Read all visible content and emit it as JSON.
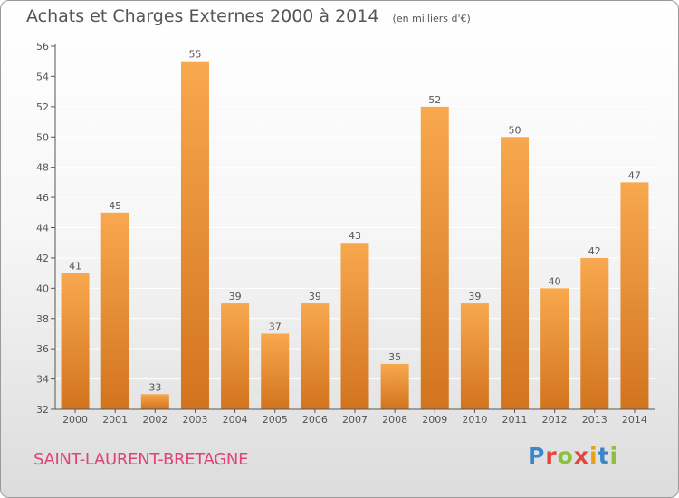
{
  "header": {
    "title": "Achats et Charges Externes 2000 à 2014",
    "subtitle": "(en milliers d'€)"
  },
  "footer": {
    "place": "SAINT-LAURENT-BRETAGNE",
    "logo_text": "Proxiti",
    "logo_colors": [
      "#3a86c8",
      "#e2463c",
      "#8bbf3c",
      "#e2463c",
      "#e8a21a",
      "#3a86c8",
      "#8bbf3c"
    ]
  },
  "colors": {
    "bar_light": "#f8a84e",
    "bar_dark": "#d2741e",
    "axis": "#555555",
    "grid": "#ffffff",
    "title": "#555555",
    "place": "#e0427a"
  },
  "chart_data": {
    "type": "bar",
    "title": "Achats et Charges Externes 2000 à 2014",
    "subtitle": "(en milliers d'€)",
    "categories": [
      "2000",
      "2001",
      "2002",
      "2003",
      "2004",
      "2005",
      "2006",
      "2007",
      "2008",
      "2009",
      "2010",
      "2011",
      "2012",
      "2013",
      "2014"
    ],
    "values": [
      41,
      45,
      33,
      55,
      39,
      37,
      39,
      43,
      35,
      52,
      39,
      50,
      40,
      42,
      47
    ],
    "ylim": [
      32,
      56
    ],
    "yticks": [
      32,
      34,
      36,
      38,
      40,
      42,
      44,
      46,
      48,
      50,
      52,
      54,
      56
    ],
    "xlabel": "",
    "ylabel": "",
    "grid": true,
    "data_labels": true
  }
}
